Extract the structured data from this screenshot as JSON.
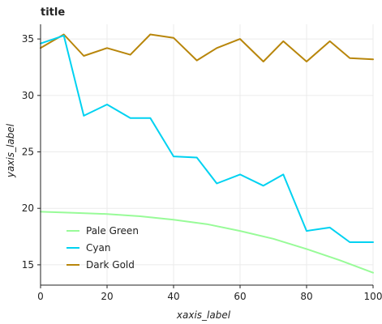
{
  "chart_data": {
    "type": "line",
    "title": "title",
    "xlabel": "xaxis_label",
    "ylabel": "yaxis_label",
    "xlim": [
      0,
      100
    ],
    "ylim": [
      13.2,
      36.3
    ],
    "x_ticks": [
      0,
      20,
      40,
      60,
      80,
      100
    ],
    "y_ticks": [
      15,
      20,
      25,
      30,
      35
    ],
    "grid": true,
    "legend_position": "bottom-left",
    "legend": [
      "Pale Green",
      "Cyan",
      "Dark Gold"
    ],
    "series": [
      {
        "name": "Dark Gold",
        "color": "#b8860b",
        "x": [
          0,
          7,
          13,
          20,
          27,
          33,
          40,
          47,
          53,
          60,
          67,
          73,
          80,
          87,
          93,
          100
        ],
        "y": [
          34.2,
          35.4,
          33.5,
          34.2,
          33.6,
          35.4,
          35.1,
          33.1,
          34.2,
          35.0,
          33.0,
          34.8,
          33.0,
          34.8,
          33.3,
          33.2
        ]
      },
      {
        "name": "Cyan",
        "color": "#00d2f1",
        "x": [
          0,
          7,
          13,
          20,
          27,
          33,
          40,
          47,
          53,
          60,
          67,
          73,
          80,
          87,
          93,
          100
        ],
        "y": [
          34.6,
          35.3,
          28.2,
          29.2,
          28.0,
          28.0,
          24.6,
          24.5,
          22.2,
          23.0,
          22.0,
          23.0,
          18.0,
          18.3,
          17.0,
          17.0
        ]
      },
      {
        "name": "Pale Green",
        "color": "#98fb98",
        "x": [
          0,
          10,
          20,
          30,
          40,
          50,
          60,
          70,
          80,
          90,
          100
        ],
        "y": [
          19.7,
          19.6,
          19.5,
          19.3,
          19.0,
          18.6,
          18.0,
          17.3,
          16.4,
          15.4,
          14.3
        ]
      }
    ]
  }
}
